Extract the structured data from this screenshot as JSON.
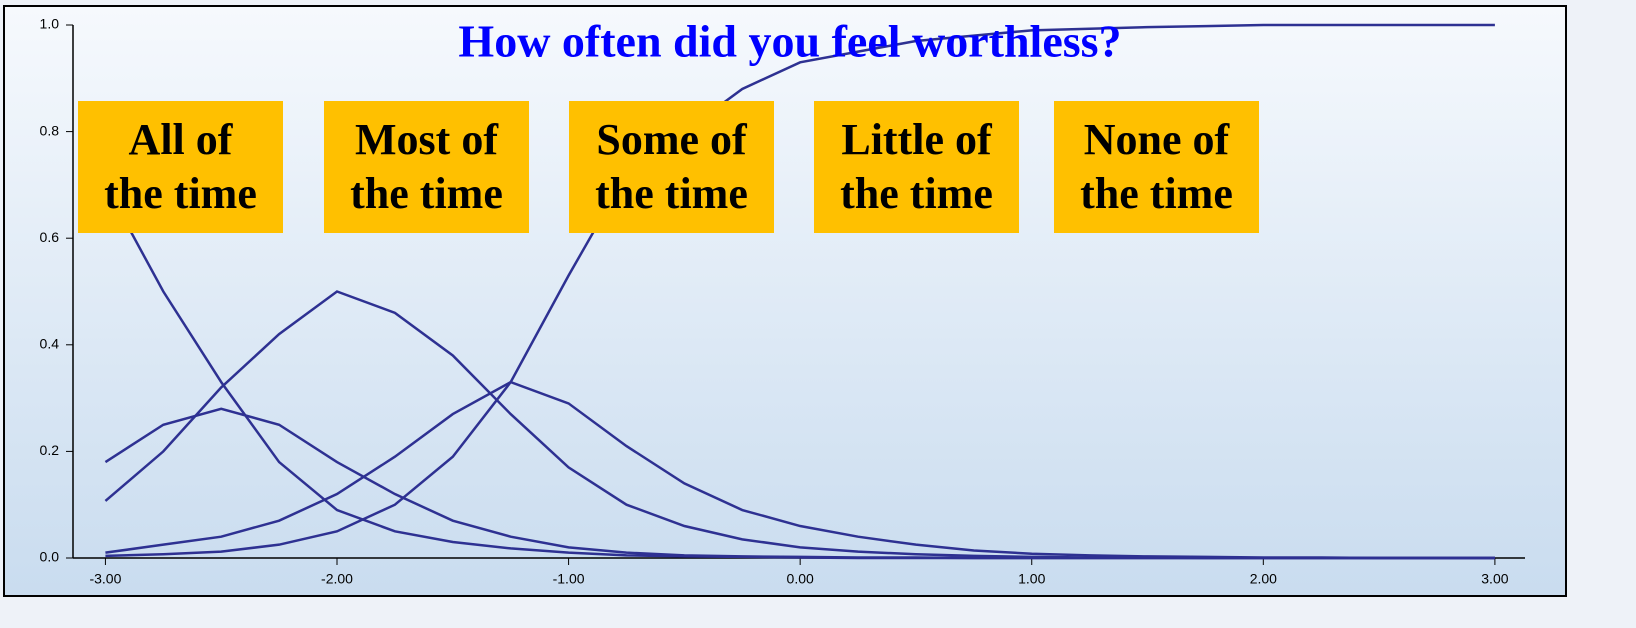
{
  "chart_data": {
    "type": "line",
    "title": "How often did you feel worthless?",
    "x": [
      -3,
      -2.75,
      -2.5,
      -2.25,
      -2,
      -1.75,
      -1.5,
      -1.25,
      -1,
      -0.75,
      -0.5,
      -0.25,
      0,
      0.25,
      0.5,
      0.75,
      1,
      1.25,
      1.5,
      1.75,
      2,
      2.25,
      2.5,
      2.75,
      3
    ],
    "series": [
      {
        "name": "All of\nthe time",
        "color": "#2e3192",
        "values": [
          0.7,
          0.5,
          0.33,
          0.18,
          0.09,
          0.05,
          0.03,
          0.018,
          0.01,
          0.005,
          0.003,
          0.002,
          0.001,
          0,
          0,
          0,
          0,
          0,
          0,
          0,
          0,
          0,
          0,
          0,
          0
        ]
      },
      {
        "name": "Most of\nthe time",
        "color": "#2e3192",
        "values": [
          0.18,
          0.25,
          0.28,
          0.25,
          0.18,
          0.12,
          0.07,
          0.04,
          0.02,
          0.01,
          0.005,
          0.003,
          0.002,
          0.001,
          0.001,
          0,
          0,
          0,
          0,
          0,
          0,
          0,
          0,
          0,
          0
        ]
      },
      {
        "name": "Some of\nthe time",
        "color": "#2e3192",
        "values": [
          0.107,
          0.2,
          0.32,
          0.42,
          0.5,
          0.46,
          0.38,
          0.27,
          0.17,
          0.1,
          0.06,
          0.035,
          0.02,
          0.012,
          0.007,
          0.004,
          0.002,
          0.001,
          0.001,
          0,
          0,
          0,
          0,
          0,
          0
        ]
      },
      {
        "name": "Little of\nthe time",
        "color": "#2e3192",
        "values": [
          0.01,
          0.025,
          0.04,
          0.07,
          0.12,
          0.19,
          0.27,
          0.33,
          0.29,
          0.21,
          0.14,
          0.09,
          0.06,
          0.04,
          0.025,
          0.014,
          0.008,
          0.005,
          0.003,
          0.002,
          0.001,
          0.001,
          0,
          0,
          0
        ]
      },
      {
        "name": "None of\nthe time",
        "color": "#2e3192",
        "values": [
          0.004,
          0.007,
          0.012,
          0.025,
          0.05,
          0.1,
          0.19,
          0.33,
          0.53,
          0.72,
          0.8,
          0.88,
          0.93,
          0.95,
          0.97,
          0.98,
          0.99,
          0.993,
          0.996,
          0.998,
          1,
          1,
          1,
          1,
          1
        ]
      }
    ],
    "xlim": [
      -3.14,
      3.13
    ],
    "ylim": [
      0,
      1
    ],
    "xticks": [
      {
        "value": -3,
        "label": "-3.00"
      },
      {
        "value": -2,
        "label": "-2.00"
      },
      {
        "value": -1,
        "label": "-1.00"
      },
      {
        "value": 0,
        "label": "0.00"
      },
      {
        "value": 1,
        "label": "1.00"
      },
      {
        "value": 2,
        "label": "2.00"
      },
      {
        "value": 3,
        "label": "3.00"
      }
    ],
    "yticks": [
      {
        "value": 0,
        "label": "0.0"
      },
      {
        "value": 0.2,
        "label": "0.2"
      },
      {
        "value": 0.4,
        "label": "0.4"
      },
      {
        "value": 0.6,
        "label": "0.6"
      },
      {
        "value": 0.8,
        "label": "0.8"
      },
      {
        "value": 1,
        "label": "1.0"
      }
    ],
    "grid": false
  }
}
